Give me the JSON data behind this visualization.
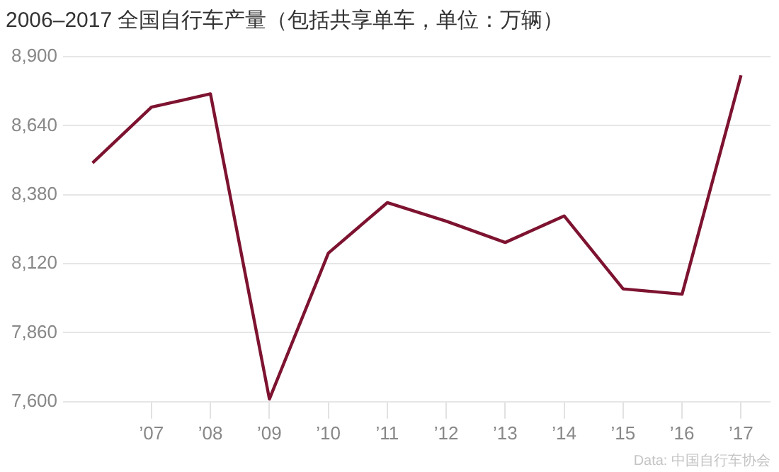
{
  "chart_data": {
    "type": "line",
    "title": "2006–2017 全国自行车产量（包括共享单车，单位：万辆）",
    "categories": [
      null,
      "’07",
      "’08",
      "’09",
      "’10",
      "’11",
      "’12",
      "’13",
      "’14",
      "’15",
      "’16",
      "’17"
    ],
    "series": [
      {
        "color": "#7d1330",
        "values": [
          8500,
          8710,
          8760,
          7610,
          8160,
          8350,
          8280,
          8200,
          8300,
          8025,
          8005,
          8830
        ]
      }
    ],
    "ylim": [
      7600,
      8900
    ],
    "yticks": [
      {
        "value": 7600,
        "label": "7,600"
      },
      {
        "value": 7860,
        "label": "7,860"
      },
      {
        "value": 8120,
        "label": "8,120"
      },
      {
        "value": 8380,
        "label": "8,380"
      },
      {
        "value": 8640,
        "label": "8,640"
      },
      {
        "value": 8900,
        "label": "8,900"
      }
    ],
    "grid": "y",
    "legend": false,
    "marker": "none",
    "line_style": "solid",
    "annotations": [
      "Data: 中国自行车协会"
    ]
  }
}
